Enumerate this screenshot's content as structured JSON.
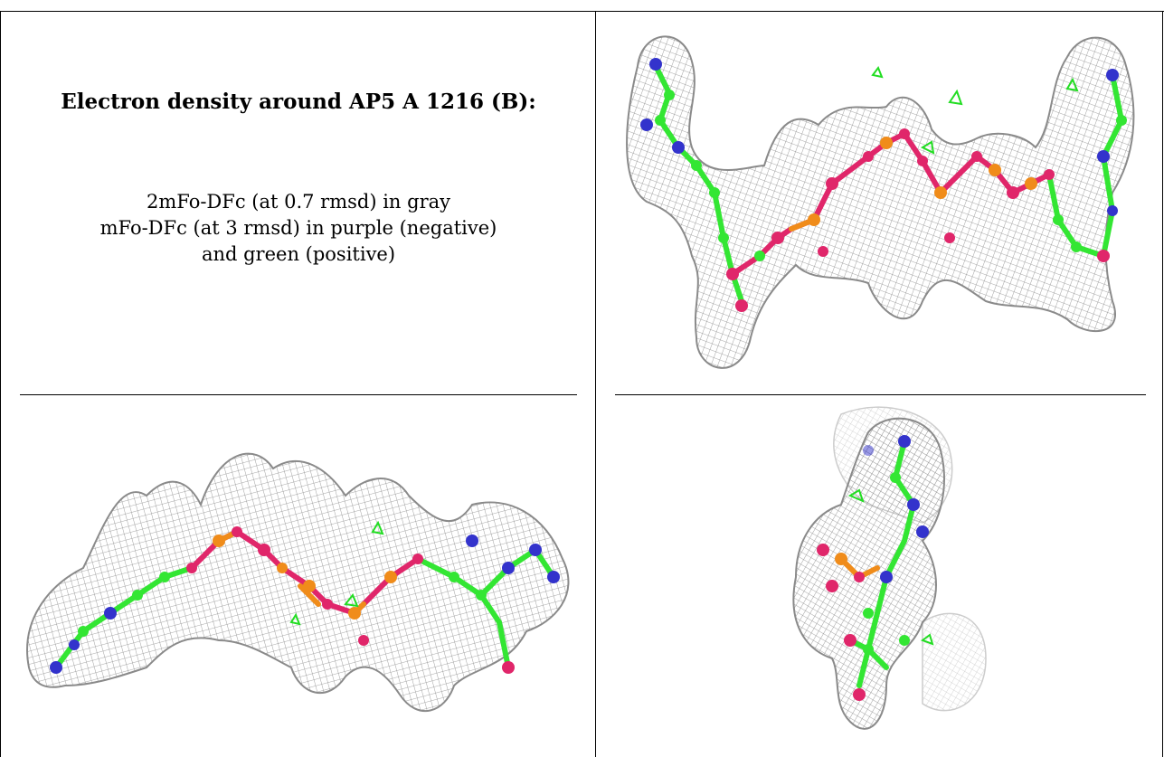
{
  "caption": {
    "title": "Electron density around AP5 A 1216 (B):",
    "line1": "2mFo-DFc (at 0.7 rmsd) in gray",
    "line2": "mFo-DFc (at 3 rmsd) in purple (negative)",
    "line3": "and green (positive)"
  },
  "colors": {
    "mesh": "#8a8a8a",
    "carbon": "#33e633",
    "nitrogen": "#3333cc",
    "oxygen": "#e0266a",
    "phosphorus": "#f08c1a",
    "positive_density": "#22dd22"
  },
  "panels": [
    {
      "name": "density-view-top-right"
    },
    {
      "name": "density-view-bottom-left"
    },
    {
      "name": "density-view-bottom-right"
    }
  ]
}
